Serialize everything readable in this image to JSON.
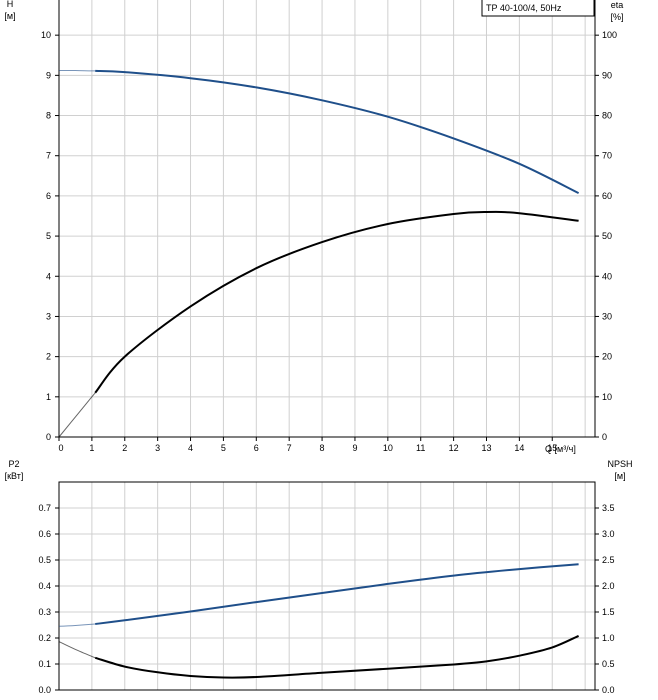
{
  "chart_data": [
    {
      "type": "line",
      "title": "TP 40-100/4, 50Hz",
      "xlabel": "Q [м³/ч]",
      "ylabel_left": "H\n[м]",
      "ylabel_right": "eta\n[%]",
      "xlim": [
        0,
        16.3
      ],
      "ylim_left": [
        0,
        10.9
      ],
      "ylim_right": [
        0,
        109
      ],
      "x_ticks": [
        "0",
        "1",
        "2",
        "3",
        "4",
        "5",
        "6",
        "7",
        "8",
        "9",
        "10",
        "11",
        "12",
        "13",
        "14",
        "15"
      ],
      "y_ticks_left": [
        "0",
        "1",
        "2",
        "3",
        "4",
        "5",
        "6",
        "7",
        "8",
        "9",
        "10"
      ],
      "y_ticks_right": [
        "0",
        "10",
        "20",
        "30",
        "40",
        "50",
        "60",
        "70",
        "80",
        "90",
        "100"
      ],
      "grid": true,
      "series": [
        {
          "axis": "left",
          "color": "#1f4f8a",
          "thin_x": [
            0,
            0.5,
            1.1
          ],
          "thin_y": [
            9.12,
            9.12,
            9.11
          ],
          "x": [
            1.1,
            2,
            4,
            6,
            8,
            10,
            12,
            14,
            15.8
          ],
          "y": [
            9.11,
            9.08,
            8.93,
            8.7,
            8.38,
            7.97,
            7.43,
            6.8,
            6.07
          ]
        },
        {
          "axis": "right",
          "color": "#000000",
          "thin_x": [
            0,
            0.6,
            1.1
          ],
          "thin_y": [
            0,
            6,
            11
          ],
          "x": [
            1.1,
            2,
            4,
            6,
            8,
            10,
            12,
            13,
            14,
            15.8
          ],
          "y": [
            11,
            20,
            32.5,
            42,
            48.5,
            53,
            55.5,
            56,
            55.7,
            53.8
          ]
        }
      ]
    },
    {
      "type": "line",
      "xlabel": "",
      "ylabel_left": "P2\n[кВт]",
      "ylabel_right": "NPSH\n[м]",
      "xlim": [
        0,
        16.3
      ],
      "ylim_left": [
        0,
        0.8
      ],
      "ylim_right": [
        0,
        4.0
      ],
      "y_ticks_left": [
        "0.0",
        "0.1",
        "0.2",
        "0.3",
        "0.4",
        "0.5",
        "0.6",
        "0.7"
      ],
      "y_ticks_right": [
        "0.0",
        "0.5",
        "1.0",
        "1.5",
        "2.0",
        "2.5",
        "3.0",
        "3.5"
      ],
      "grid": true,
      "series": [
        {
          "axis": "left",
          "color": "#1f4f8a",
          "thin_x": [
            0,
            0.5,
            1.1
          ],
          "thin_y": [
            0.245,
            0.248,
            0.254
          ],
          "x": [
            1.1,
            2,
            4,
            6,
            8,
            10,
            12,
            14,
            15.8
          ],
          "y": [
            0.254,
            0.268,
            0.302,
            0.338,
            0.373,
            0.408,
            0.44,
            0.465,
            0.484
          ]
        },
        {
          "axis": "right",
          "color": "#000000",
          "thin_x": [
            0,
            0.5,
            1.1
          ],
          "thin_y": [
            0.93,
            0.78,
            0.62
          ],
          "x": [
            1.1,
            2,
            3,
            4,
            5,
            6,
            8,
            10,
            12,
            13,
            14,
            15,
            15.8
          ],
          "y": [
            0.62,
            0.45,
            0.34,
            0.27,
            0.24,
            0.25,
            0.33,
            0.41,
            0.49,
            0.55,
            0.66,
            0.82,
            1.04
          ]
        }
      ]
    }
  ]
}
